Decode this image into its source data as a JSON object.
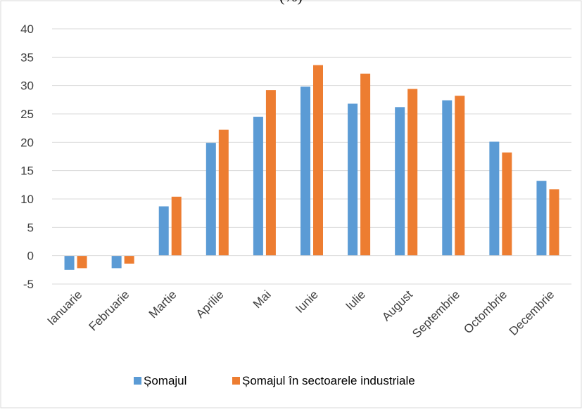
{
  "chart_data": {
    "type": "bar",
    "title": "(%)",
    "categories": [
      "Ianuarie",
      "Februarie",
      "Martie",
      "Aprilie",
      "Mai",
      "Iunie",
      "Iulie",
      "August",
      "Septembrie",
      "Octombrie",
      "Decembrie"
    ],
    "series": [
      {
        "name": "Șomajul",
        "color": "#5B9BD5",
        "values": [
          -2.5,
          -2.2,
          8.7,
          19.9,
          24.5,
          29.8,
          26.8,
          26.2,
          27.4,
          20.1,
          13.2
        ]
      },
      {
        "name": "Șomajul în sectoarele industriale",
        "color": "#ED7D31",
        "values": [
          -2.2,
          -1.4,
          10.4,
          22.2,
          29.2,
          33.6,
          32.1,
          29.4,
          28.2,
          18.2,
          11.7
        ]
      }
    ],
    "yticks": [
      "40",
      "35",
      "30",
      "25",
      "20",
      "15",
      "10",
      "5",
      "0",
      "-5"
    ],
    "ylim": [
      -5,
      40
    ],
    "grid": true,
    "legend_position": "bottom",
    "xlabel": "",
    "ylabel": ""
  }
}
